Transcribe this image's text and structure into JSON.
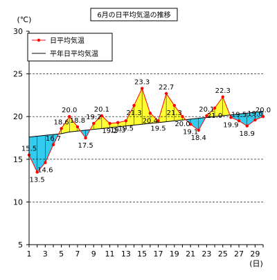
{
  "chart_data": {
    "type": "line",
    "title": "6月の日平均気温の推移",
    "ylabel": "(℃)",
    "xlabel": "(日)",
    "ylim": [
      5,
      30
    ],
    "yticks": [
      5,
      10,
      15,
      20,
      25,
      30
    ],
    "xticks": [
      1,
      3,
      5,
      7,
      9,
      11,
      13,
      15,
      17,
      19,
      21,
      23,
      25,
      27,
      29
    ],
    "grid": "horizontal-dashed",
    "legend_position": "top-left",
    "x": [
      1,
      2,
      3,
      4,
      5,
      6,
      7,
      8,
      9,
      10,
      11,
      12,
      13,
      14,
      15,
      16,
      17,
      18,
      19,
      20,
      21,
      22,
      23,
      24,
      25,
      26,
      27,
      28,
      29,
      30
    ],
    "series": [
      {
        "name": "日平均気温",
        "color": "#ff0000",
        "marker": "dot",
        "values": [
          15.5,
          13.5,
          14.6,
          16.7,
          18.6,
          20.0,
          18.8,
          17.5,
          19.2,
          20.1,
          19.2,
          19.3,
          19.5,
          21.3,
          23.3,
          20.4,
          19.5,
          22.7,
          21.3,
          20.0,
          19.1,
          18.4,
          20.1,
          21.0,
          22.3,
          19.9,
          19.5,
          18.9,
          19.6,
          20.0
        ],
        "data_labels": [
          "15.5",
          "13.5",
          "14.6",
          "16.7",
          "18.6",
          "20.0",
          "18.8",
          "17.5",
          "19.2",
          "20.1",
          "19.2",
          "19.3",
          "19.5",
          "21.3",
          "23.3",
          "20.4",
          "19.5",
          "22.7",
          "21.3",
          "20.0",
          "19.1",
          "18.4",
          "20.1",
          "21.0",
          "22.3",
          "19.9",
          "19.5",
          "18.9",
          "19.6",
          "20.0"
        ]
      },
      {
        "name": "平年日平均気温",
        "color": "#000000",
        "marker": "none",
        "values": [
          17.6,
          17.7,
          17.8,
          17.9,
          18.0,
          18.2,
          18.3,
          18.4,
          18.5,
          18.6,
          18.7,
          18.8,
          18.9,
          19.0,
          19.1,
          19.2,
          19.3,
          19.4,
          19.5,
          19.6,
          19.7,
          19.8,
          19.9,
          20.0,
          20.1,
          20.2,
          20.3,
          20.4,
          20.5,
          20.6
        ]
      }
    ],
    "fill_colors": {
      "above": "#ffff33",
      "below": "#33ccee"
    }
  }
}
